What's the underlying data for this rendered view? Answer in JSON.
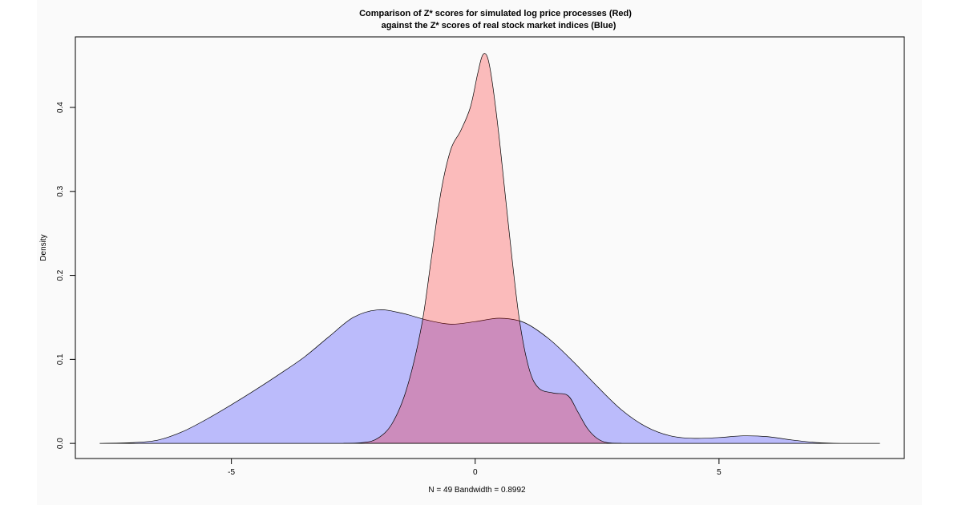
{
  "chart_data": {
    "type": "area",
    "title": "Comparison of Z* scores for simulated log price processes (Red)",
    "subtitle": "against the Z* scores of real stock market indices (Blue)",
    "xlabel": "N = 49   Bandwidth = 0.8992",
    "ylabel": "Density",
    "xlim": [
      -8.2,
      8.8
    ],
    "ylim": [
      -0.018,
      0.484
    ],
    "x_ticks": [
      -5,
      0,
      5
    ],
    "x_tick_labels": [
      "-5",
      "0",
      "5"
    ],
    "y_ticks": [
      0.0,
      0.1,
      0.2,
      0.3,
      0.4
    ],
    "y_tick_labels": [
      "0.0",
      "0.1",
      "0.2",
      "0.3",
      "0.4"
    ],
    "grid": false,
    "colors": {
      "blue_fill": "#0000ff",
      "red_fill": "#ff0000",
      "outline": "#000000"
    },
    "series": [
      {
        "points": [
          [
            -7.7,
            0.0
          ],
          [
            -7.0,
            0.001
          ],
          [
            -6.5,
            0.004
          ],
          [
            -6.0,
            0.014
          ],
          [
            -5.5,
            0.029
          ],
          [
            -5.0,
            0.046
          ],
          [
            -4.5,
            0.064
          ],
          [
            -4.0,
            0.083
          ],
          [
            -3.5,
            0.103
          ],
          [
            -3.0,
            0.127
          ],
          [
            -2.5,
            0.15
          ],
          [
            -2.0,
            0.159
          ],
          [
            -1.5,
            0.155
          ],
          [
            -1.0,
            0.147
          ],
          [
            -0.5,
            0.142
          ],
          [
            0.0,
            0.145
          ],
          [
            0.5,
            0.149
          ],
          [
            1.0,
            0.144
          ],
          [
            1.5,
            0.125
          ],
          [
            2.0,
            0.098
          ],
          [
            2.5,
            0.068
          ],
          [
            3.0,
            0.04
          ],
          [
            3.5,
            0.02
          ],
          [
            4.0,
            0.009
          ],
          [
            4.5,
            0.006
          ],
          [
            5.0,
            0.007
          ],
          [
            5.5,
            0.009
          ],
          [
            6.0,
            0.008
          ],
          [
            6.5,
            0.004
          ],
          [
            7.0,
            0.001
          ],
          [
            7.5,
            0.0
          ],
          [
            8.3,
            0.0
          ]
        ]
      },
      {
        "points": [
          [
            -2.7,
            0.0
          ],
          [
            -2.3,
            0.001
          ],
          [
            -2.0,
            0.006
          ],
          [
            -1.7,
            0.024
          ],
          [
            -1.4,
            0.066
          ],
          [
            -1.1,
            0.14
          ],
          [
            -0.9,
            0.22
          ],
          [
            -0.7,
            0.3
          ],
          [
            -0.5,
            0.35
          ],
          [
            -0.3,
            0.372
          ],
          [
            -0.1,
            0.4
          ],
          [
            0.05,
            0.44
          ],
          [
            0.15,
            0.462
          ],
          [
            0.25,
            0.46
          ],
          [
            0.35,
            0.43
          ],
          [
            0.5,
            0.36
          ],
          [
            0.7,
            0.25
          ],
          [
            0.9,
            0.15
          ],
          [
            1.1,
            0.09
          ],
          [
            1.3,
            0.066
          ],
          [
            1.6,
            0.06
          ],
          [
            1.9,
            0.057
          ],
          [
            2.1,
            0.038
          ],
          [
            2.3,
            0.018
          ],
          [
            2.5,
            0.006
          ],
          [
            2.7,
            0.001
          ],
          [
            3.0,
            0.0
          ]
        ]
      }
    ]
  }
}
